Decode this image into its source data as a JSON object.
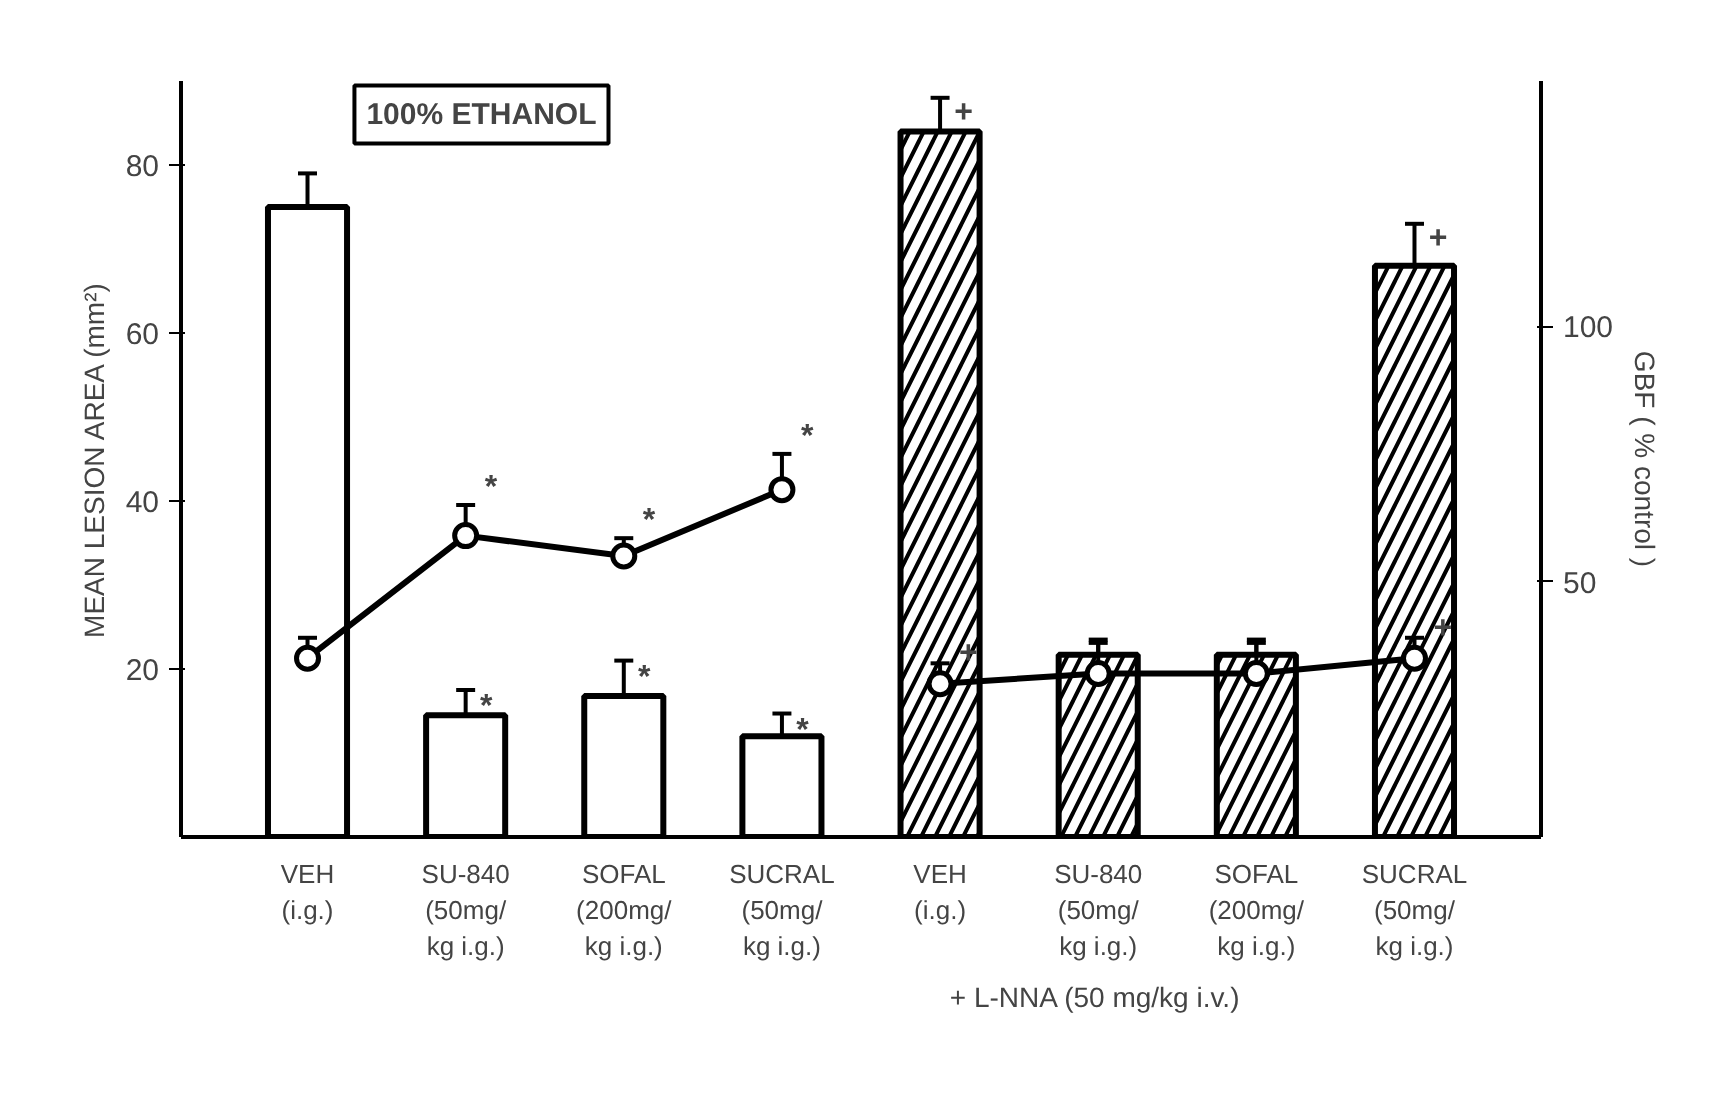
{
  "chart_data": {
    "type": "bar",
    "title": "100% ETHANOL",
    "categories": [
      "VEH\n(i.g.)",
      "SU-840\n(50mg/\nkg i.g.)",
      "SOFAL\n(200mg/\nkg i.g.)",
      "SUCRAL\n(50mg/\nkg i.g.)",
      "VEH\n(i.g.)",
      "SU-840\n(50mg/\nkg i.g.)",
      "SOFAL\n(200mg/\nkg i.g.)",
      "SUCRAL\n(50mg/\nkg i.g.)"
    ],
    "ylabel": "MEAN LESION AREA (mm²)",
    "y2label": "GBF ( % control )",
    "ylim": [
      0,
      90
    ],
    "yticks": [
      20,
      40,
      60,
      80
    ],
    "y2lim": [
      0,
      148
    ],
    "y2ticks": [
      50,
      100
    ],
    "grid": false,
    "marker": "circle",
    "series": [
      {
        "color": "#ffffff",
        "values": [
          75,
          14.5,
          16.8,
          12,
          null,
          null,
          null,
          null
        ],
        "errors": [
          [
            75,
            79
          ],
          [
            14.5,
            17.5
          ],
          [
            16.8,
            21
          ],
          [
            12,
            14.7
          ],
          null,
          null,
          null,
          null
        ],
        "value_labels": [
          null,
          "*",
          "*",
          "*",
          null,
          null,
          null,
          null
        ]
      },
      {
        "color": "#ffffff",
        "values": [
          null,
          null,
          null,
          null,
          84,
          21.7,
          21.7,
          68
        ],
        "errors": [
          null,
          null,
          null,
          null,
          [
            84,
            88
          ],
          [
            21.7,
            23.5
          ],
          [
            21.7,
            23.5
          ],
          [
            68,
            73
          ]
        ],
        "value_labels": [
          null,
          null,
          null,
          null,
          "+",
          null,
          null,
          "+"
        ]
      },
      {
        "type": "line",
        "axis": "y2",
        "color": "#000000",
        "values": [
          35,
          59,
          55,
          68,
          null,
          null,
          null,
          null
        ],
        "errors": [
          [
            35,
            39
          ],
          [
            59,
            65
          ],
          [
            55,
            58.5
          ],
          [
            68,
            75
          ],
          null,
          null,
          null,
          null
        ],
        "value_labels": [
          null,
          "*",
          "*",
          "*",
          null,
          null,
          null,
          null
        ]
      },
      {
        "type": "line",
        "axis": "y2",
        "color": "#000000",
        "values": [
          null,
          null,
          null,
          null,
          30,
          32,
          32,
          35
        ],
        "errors": [
          null,
          null,
          null,
          null,
          [
            30,
            34
          ],
          [
            32,
            38
          ],
          [
            32,
            38
          ],
          [
            35,
            39
          ]
        ],
        "value_labels": [
          null,
          null,
          null,
          null,
          "+",
          null,
          null,
          "+"
        ]
      }
    ],
    "annotations": [
      "+ L-NNA (50 mg/kg i.v.)"
    ]
  }
}
